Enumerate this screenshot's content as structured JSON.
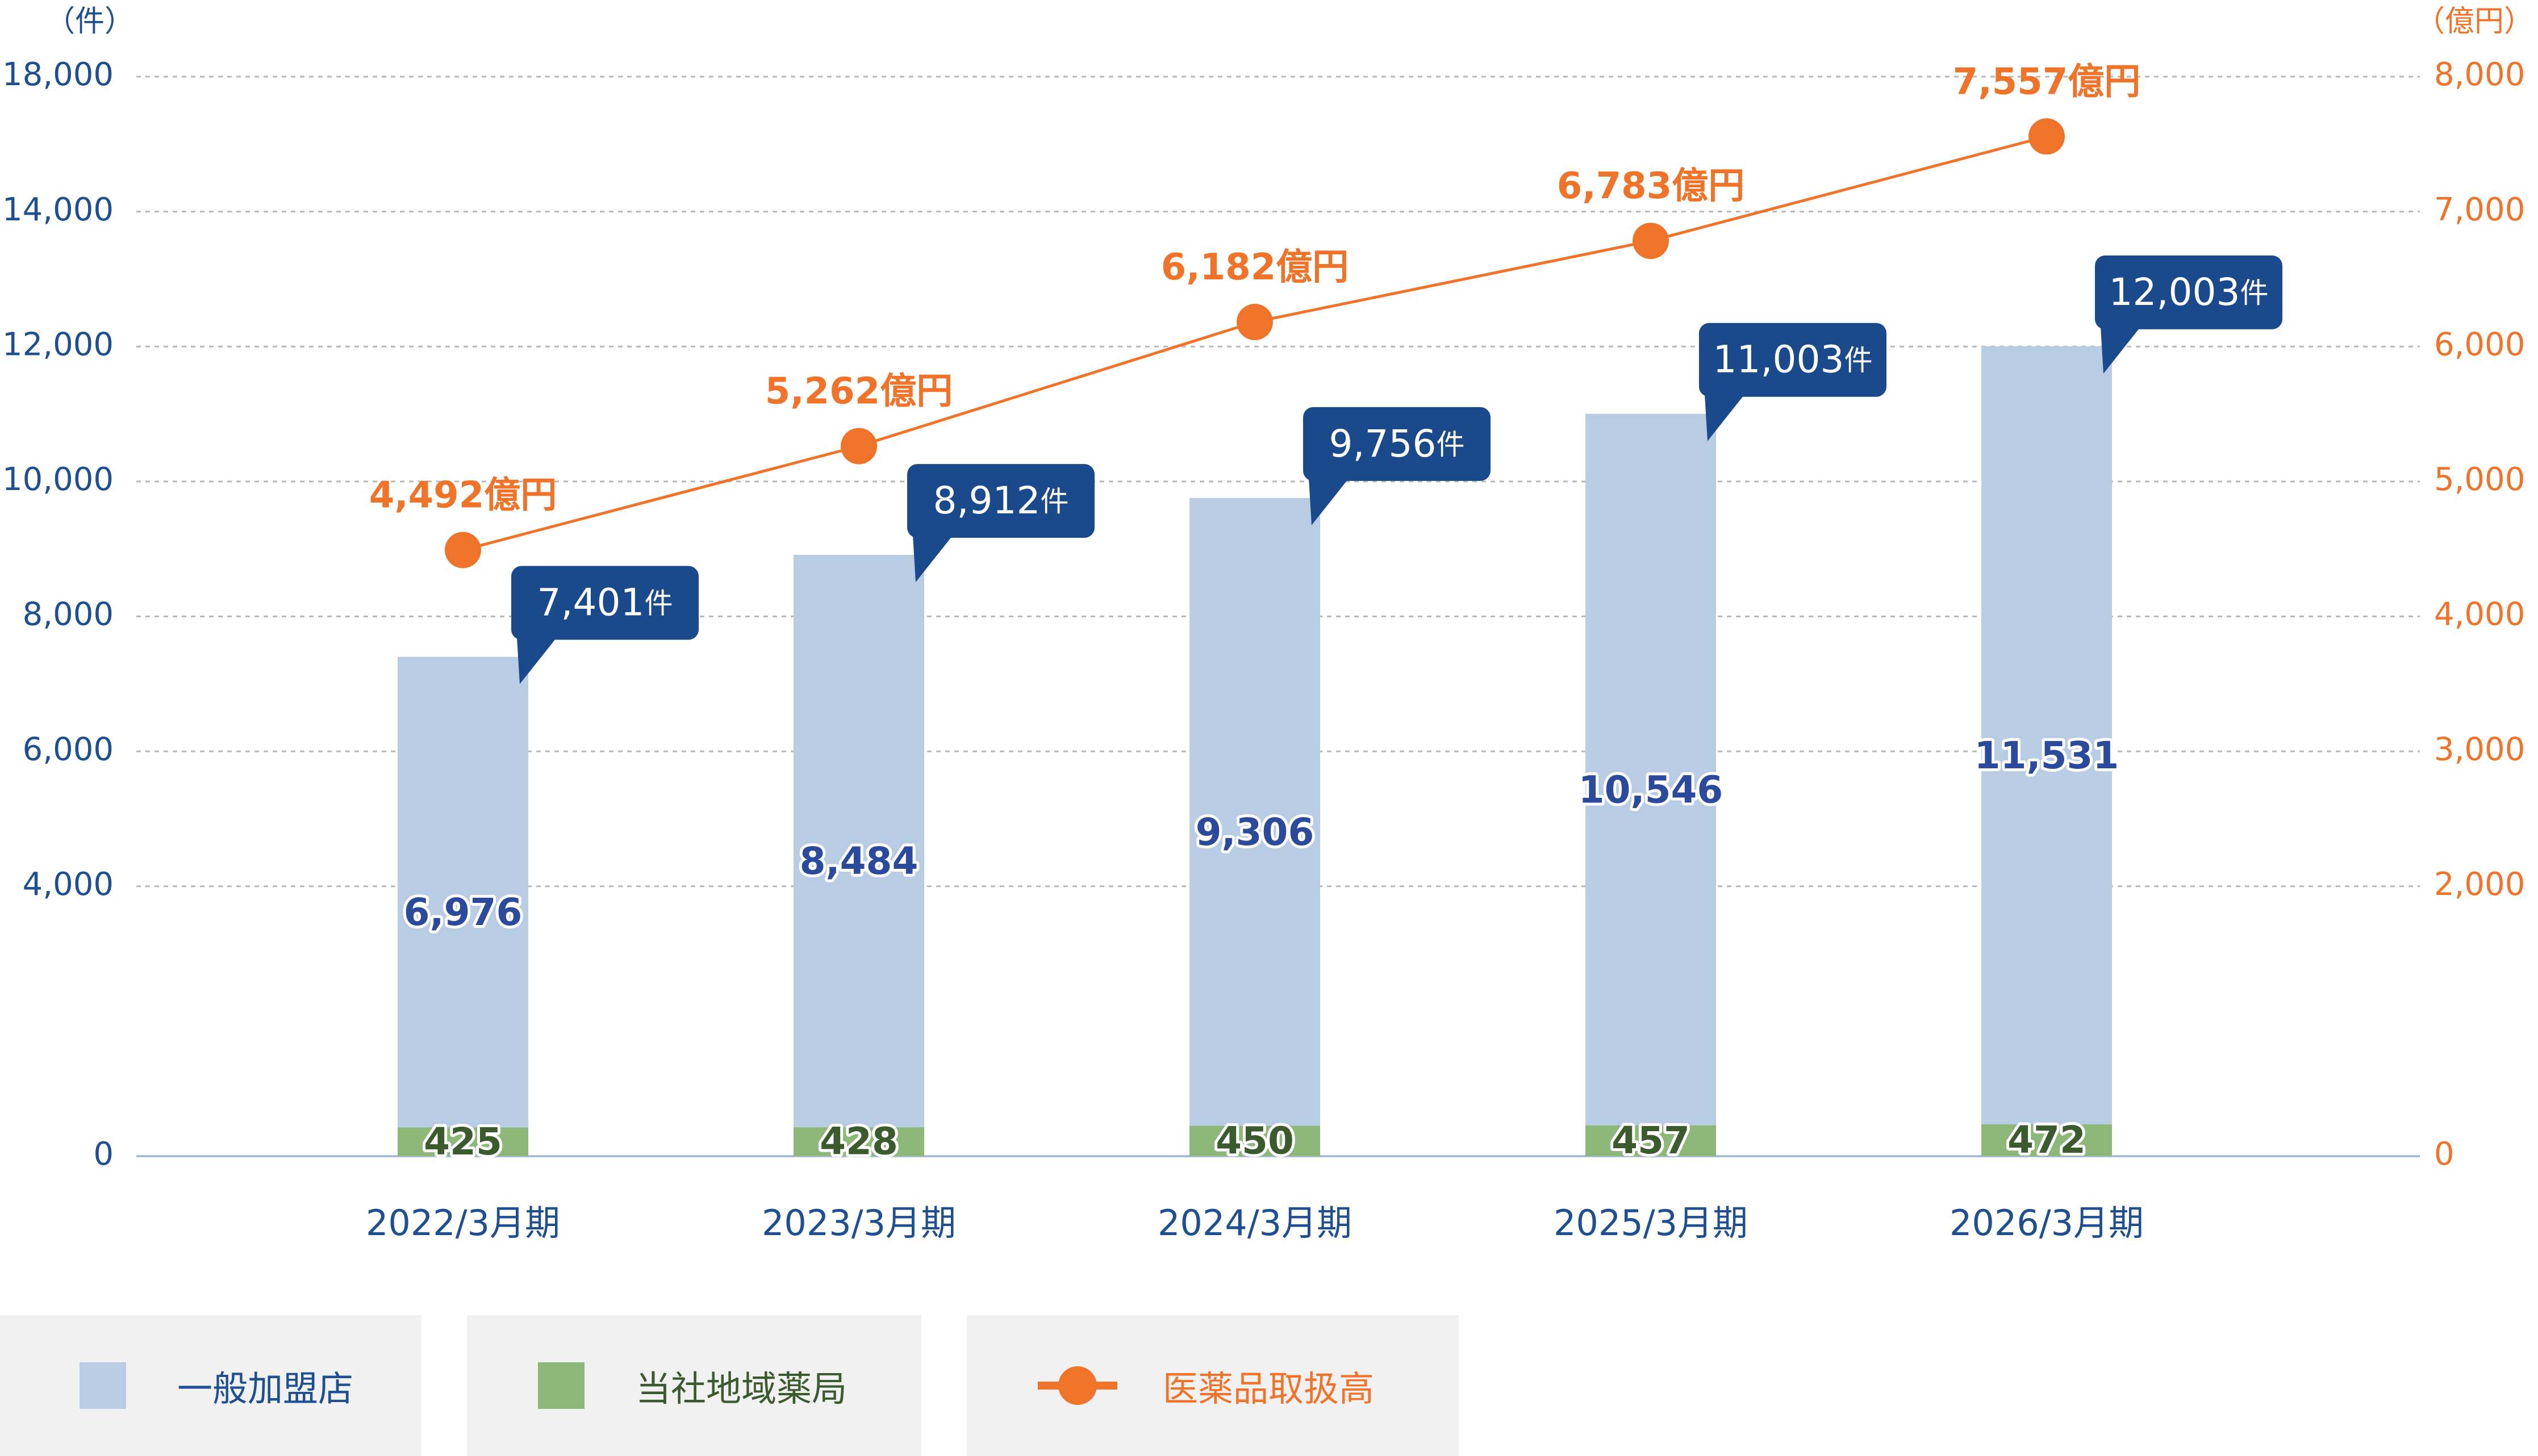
{
  "colors": {
    "bar_general": "#b8cce3",
    "bar_own": "#8db87a",
    "line": "#f0732a",
    "callout": "#1a4a8c",
    "axis_left": "#1d4f91",
    "axis_right": "#f0732a"
  },
  "chart_data": {
    "type": "bar",
    "categories": [
      "2022/3月期",
      "2023/3月期",
      "2024/3月期",
      "2025/3月期",
      "2026/3月期"
    ],
    "y_left": {
      "unit": "（件）",
      "ticks": [
        "0",
        "4,000",
        "6,000",
        "8,000",
        "10,000",
        "12,000",
        "14,000",
        "18,000"
      ],
      "tick_values": [
        0,
        4000,
        6000,
        8000,
        10000,
        12000,
        14000,
        18000
      ]
    },
    "y_right": {
      "unit": "（億円）",
      "ticks": [
        "0",
        "2,000",
        "3,000",
        "4,000",
        "5,000",
        "6,000",
        "7,000",
        "8,000"
      ],
      "tick_values": [
        0,
        2000,
        3000,
        4000,
        5000,
        6000,
        7000,
        8000
      ]
    },
    "grid": true,
    "series": [
      {
        "name": "当社地域薬局",
        "type": "bar",
        "stack": "stores",
        "values": [
          425,
          428,
          450,
          457,
          472
        ],
        "labels": [
          "425",
          "428",
          "450",
          "457",
          "472"
        ]
      },
      {
        "name": "一般加盟店",
        "type": "bar",
        "stack": "stores",
        "values": [
          6976,
          8484,
          9306,
          10546,
          11531
        ],
        "labels": [
          "6,976",
          "8,484",
          "9,306",
          "10,546",
          "11,531"
        ]
      },
      {
        "name": "医薬品取扱高",
        "type": "line",
        "axis": "right",
        "values": [
          4492,
          5262,
          6182,
          6783,
          7557
        ],
        "labels": [
          "4,492億円",
          "5,262億円",
          "6,182億円",
          "6,783億円",
          "7,557億円"
        ]
      }
    ],
    "totals": {
      "values": [
        7401,
        8912,
        9756,
        11003,
        12003
      ],
      "numbers": [
        "7,401",
        "8,912",
        "9,756",
        "11,003",
        "12,003"
      ],
      "unit": "件"
    }
  },
  "legend": [
    {
      "label": "一般加盟店",
      "color": "#b8cce3",
      "kind": "square"
    },
    {
      "label": "当社地域薬局",
      "color": "#8db87a",
      "kind": "square"
    },
    {
      "label": "医薬品取扱高",
      "color": "#f0732a",
      "kind": "line-dot"
    }
  ]
}
